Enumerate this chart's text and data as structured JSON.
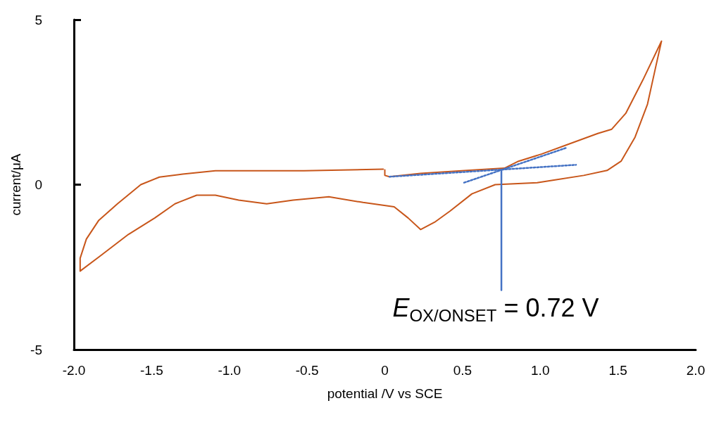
{
  "chart_data": {
    "type": "line",
    "xlabel": "potential /V vs SCE",
    "ylabel": "current/μA",
    "xlim": [
      -2,
      2
    ],
    "xticks": [
      {
        "value": -2,
        "label": "-2.0"
      },
      {
        "value": -1.5,
        "label": "-1.5"
      },
      {
        "value": -1,
        "label": "-1.0"
      },
      {
        "value": -0.5,
        "label": "-0.5"
      },
      0,
      {
        "value": 0.5,
        "label": "0.5"
      },
      {
        "value": 1,
        "label": "1.0"
      },
      {
        "value": 1.5,
        "label": "1.5"
      },
      {
        "value": 2,
        "label": "2.0"
      }
    ],
    "ylim": [
      -5,
      5
    ],
    "yticks": [
      -5,
      0,
      5
    ],
    "grid": false,
    "marker": "none",
    "line_style": "solid",
    "series": [
      {
        "color": "#c8561a",
        "x": [
          -0.01,
          -0.52,
          -1.09,
          -1.3,
          -1.45,
          -1.57,
          -1.72,
          -1.84,
          -1.92,
          -1.96,
          -1.96,
          -1.83,
          -1.65,
          -1.48,
          -1.35,
          -1.21,
          -1.09,
          -0.94,
          -0.76,
          -0.59,
          -0.36,
          -0.14,
          0.06,
          0.15,
          0.23,
          0.32,
          0.42,
          0.56,
          0.71,
          0.98,
          1.28,
          1.43,
          1.52,
          1.61,
          1.69,
          1.74,
          1.78,
          1.66,
          1.55,
          1.46,
          1.37,
          1.16,
          1.01,
          0.86,
          0.77,
          0.53,
          0.23,
          0.03,
          0.0,
          0.0
        ],
        "values": [
          0.47,
          0.42,
          0.42,
          0.32,
          0.23,
          0.0,
          -0.58,
          -1.08,
          -1.65,
          -2.23,
          -2.62,
          -2.16,
          -1.51,
          -1.01,
          -0.58,
          -0.32,
          -0.32,
          -0.47,
          -0.58,
          -0.47,
          -0.37,
          -0.54,
          -0.67,
          -1.01,
          -1.36,
          -1.14,
          -0.8,
          -0.28,
          0.0,
          0.06,
          0.28,
          0.43,
          0.71,
          1.44,
          2.44,
          3.51,
          4.35,
          3.17,
          2.16,
          1.68,
          1.55,
          1.19,
          0.93,
          0.71,
          0.5,
          0.43,
          0.34,
          0.24,
          0.28,
          0.45
        ]
      },
      {
        "color": "#4472c4",
        "line_style": "dotted",
        "x": [
          0.03,
          1.23
        ],
        "values": [
          0.24,
          0.6
        ]
      },
      {
        "color": "#4472c4",
        "line_style": "dotted",
        "x": [
          0.51,
          1.17
        ],
        "values": [
          0.06,
          1.12
        ]
      },
      {
        "color": "#4472c4",
        "line_style": "solid",
        "x": [
          0.75,
          0.75
        ],
        "values": [
          0.45,
          -3.2
        ]
      }
    ],
    "annotations": [
      "E$_{OX/ONSET}$ = 0.72 V"
    ]
  }
}
